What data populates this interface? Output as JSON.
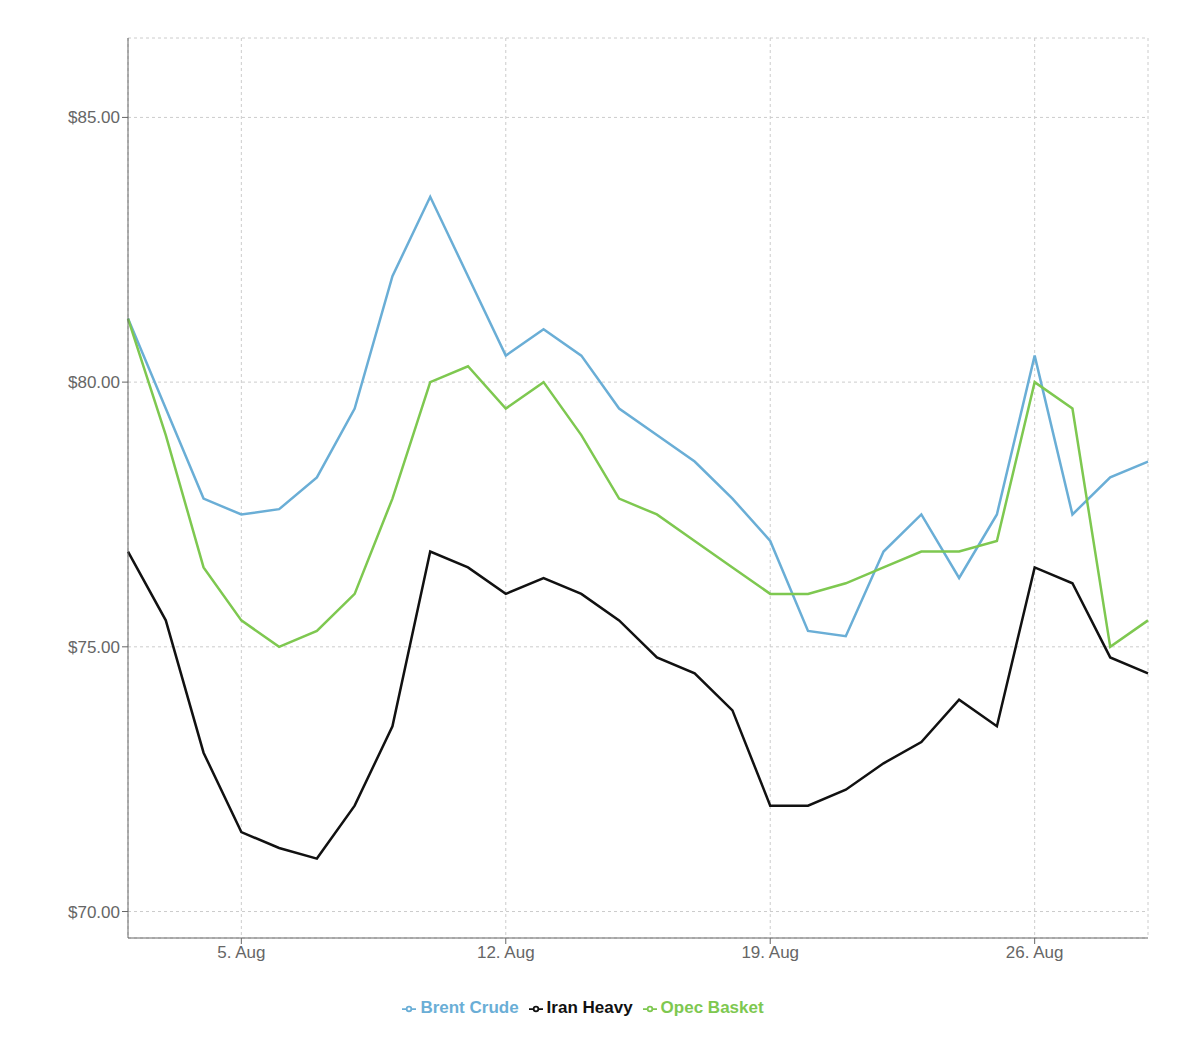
{
  "chart_data": {
    "type": "line",
    "categories": [
      null,
      null,
      null,
      "5. Aug",
      null,
      null,
      null,
      null,
      null,
      null,
      "12. Aug",
      null,
      null,
      null,
      null,
      null,
      null,
      "19. Aug",
      null,
      null,
      null,
      null,
      null,
      null,
      "26. Aug",
      null,
      null,
      null
    ],
    "series": [
      {
        "name": "Brent Crude",
        "color": "#6aaed6",
        "values": [
          81.2,
          79.5,
          77.8,
          77.5,
          77.6,
          78.2,
          79.5,
          82.0,
          83.5,
          82.0,
          80.5,
          81.0,
          80.5,
          79.5,
          79.0,
          78.5,
          77.8,
          77.0,
          75.3,
          75.2,
          76.8,
          77.5,
          76.3,
          77.5,
          80.5,
          77.5,
          78.2,
          78.5
        ]
      },
      {
        "name": "Iran Heavy",
        "color": "#111111",
        "values": [
          76.8,
          75.5,
          73.0,
          71.5,
          71.2,
          71.0,
          72.0,
          73.5,
          76.8,
          76.5,
          76.0,
          76.3,
          76.0,
          75.5,
          74.8,
          74.5,
          73.8,
          72.0,
          72.0,
          72.3,
          72.8,
          73.2,
          74.0,
          73.5,
          76.5,
          76.2,
          74.8,
          74.5
        ]
      },
      {
        "name": "Opec Basket",
        "color": "#7ec850",
        "values": [
          81.2,
          79.0,
          76.5,
          75.5,
          75.0,
          75.3,
          76.0,
          77.8,
          80.0,
          80.3,
          79.5,
          80.0,
          79.0,
          77.8,
          77.5,
          77.0,
          76.5,
          76.0,
          76.0,
          76.2,
          76.5,
          76.8,
          76.8,
          77.0,
          80.0,
          79.5,
          75.0,
          75.5
        ]
      }
    ],
    "ylim": [
      69.5,
      86.5
    ],
    "yticks": [
      {
        "value": 70,
        "label": "$70.00"
      },
      {
        "value": 75,
        "label": "$75.00"
      },
      {
        "value": 80,
        "label": "$80.00"
      },
      {
        "value": 85,
        "label": "$85.00"
      }
    ],
    "grid": true,
    "legend": "bottom"
  }
}
